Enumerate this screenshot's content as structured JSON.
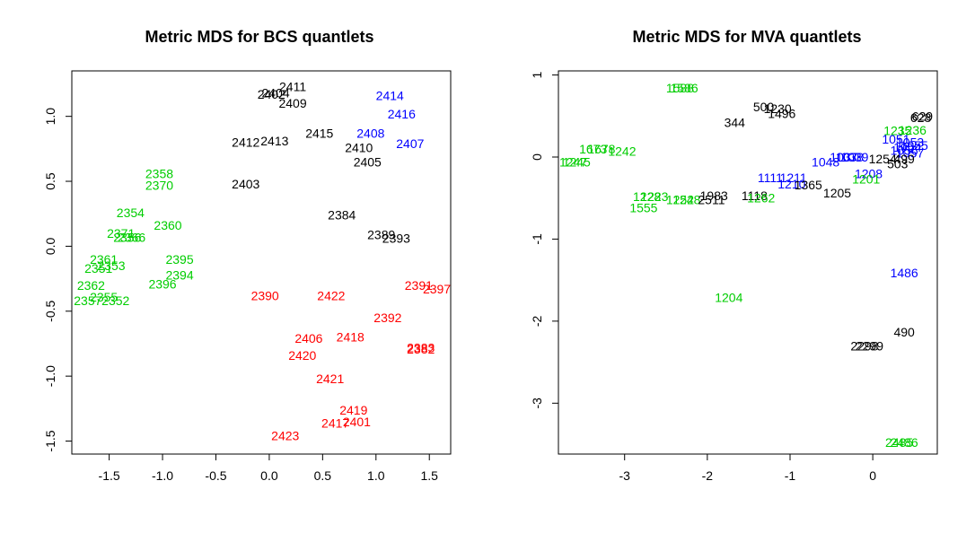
{
  "colors": {
    "black": "#000000",
    "blue": "#0000ff",
    "green": "#00cd00",
    "red": "#ff0000"
  },
  "chart_data": [
    {
      "type": "scatter",
      "title": "Metric MDS for BCS quantlets",
      "xlabel": "",
      "ylabel": "",
      "xlim": [
        -1.85,
        1.7
      ],
      "ylim": [
        -1.6,
        1.35
      ],
      "xticks": [
        -1.5,
        -1.0,
        -0.5,
        0.0,
        0.5,
        1.0,
        1.5
      ],
      "xtick_labels": [
        "-1.5",
        "-1.0",
        "-0.5",
        "0.0",
        "0.5",
        "1.0",
        "1.5"
      ],
      "yticks": [
        -1.5,
        -1.0,
        -0.5,
        0.0,
        0.5,
        1.0
      ],
      "ytick_labels": [
        "-1.5",
        "-1.0",
        "-0.5",
        "0.0",
        "0.5",
        "1.0"
      ],
      "grid": false,
      "points": [
        {
          "label": "2411",
          "x": 0.22,
          "y": 1.23,
          "color": "black"
        },
        {
          "label": "2404",
          "x": 0.06,
          "y": 1.18,
          "color": "black"
        },
        {
          "label": "2402",
          "x": 0.02,
          "y": 1.17,
          "color": "black"
        },
        {
          "label": "2409",
          "x": 0.22,
          "y": 1.1,
          "color": "black"
        },
        {
          "label": "2412",
          "x": -0.22,
          "y": 0.8,
          "color": "black"
        },
        {
          "label": "2413",
          "x": 0.05,
          "y": 0.81,
          "color": "black"
        },
        {
          "label": "2415",
          "x": 0.47,
          "y": 0.87,
          "color": "black"
        },
        {
          "label": "2410",
          "x": 0.84,
          "y": 0.76,
          "color": "black"
        },
        {
          "label": "2405",
          "x": 0.92,
          "y": 0.65,
          "color": "black"
        },
        {
          "label": "2403",
          "x": -0.22,
          "y": 0.48,
          "color": "black"
        },
        {
          "label": "2384",
          "x": 0.68,
          "y": 0.24,
          "color": "black"
        },
        {
          "label": "2389",
          "x": 1.05,
          "y": 0.09,
          "color": "black"
        },
        {
          "label": "2393",
          "x": 1.19,
          "y": 0.06,
          "color": "black"
        },
        {
          "label": "2414",
          "x": 1.13,
          "y": 1.16,
          "color": "blue"
        },
        {
          "label": "2416",
          "x": 1.24,
          "y": 1.02,
          "color": "blue"
        },
        {
          "label": "2408",
          "x": 0.95,
          "y": 0.87,
          "color": "blue"
        },
        {
          "label": "2407",
          "x": 1.32,
          "y": 0.79,
          "color": "blue"
        },
        {
          "label": "2358",
          "x": -1.03,
          "y": 0.56,
          "color": "green"
        },
        {
          "label": "2370",
          "x": -1.03,
          "y": 0.47,
          "color": "green"
        },
        {
          "label": "2354",
          "x": -1.3,
          "y": 0.26,
          "color": "green"
        },
        {
          "label": "2360",
          "x": -0.95,
          "y": 0.16,
          "color": "green"
        },
        {
          "label": "2371",
          "x": -1.39,
          "y": 0.1,
          "color": "green"
        },
        {
          "label": "2356",
          "x": -1.33,
          "y": 0.07,
          "color": "green"
        },
        {
          "label": "2366",
          "x": -1.29,
          "y": 0.07,
          "color": "green"
        },
        {
          "label": "2361",
          "x": -1.55,
          "y": -0.1,
          "color": "green"
        },
        {
          "label": "2353",
          "x": -1.48,
          "y": -0.15,
          "color": "green"
        },
        {
          "label": "2351",
          "x": -1.6,
          "y": -0.17,
          "color": "green"
        },
        {
          "label": "2395",
          "x": -0.84,
          "y": -0.1,
          "color": "green"
        },
        {
          "label": "2394",
          "x": -0.84,
          "y": -0.22,
          "color": "green"
        },
        {
          "label": "2396",
          "x": -1.0,
          "y": -0.29,
          "color": "green"
        },
        {
          "label": "2362",
          "x": -1.67,
          "y": -0.3,
          "color": "green"
        },
        {
          "label": "2355",
          "x": -1.55,
          "y": -0.39,
          "color": "green"
        },
        {
          "label": "2357",
          "x": -1.7,
          "y": -0.42,
          "color": "green"
        },
        {
          "label": "2352",
          "x": -1.44,
          "y": -0.42,
          "color": "green"
        },
        {
          "label": "2390",
          "x": -0.04,
          "y": -0.38,
          "color": "red"
        },
        {
          "label": "2422",
          "x": 0.58,
          "y": -0.38,
          "color": "red"
        },
        {
          "label": "2391",
          "x": 1.4,
          "y": -0.3,
          "color": "red"
        },
        {
          "label": "2397",
          "x": 1.57,
          "y": -0.33,
          "color": "red"
        },
        {
          "label": "2392",
          "x": 1.11,
          "y": -0.55,
          "color": "red"
        },
        {
          "label": "2406",
          "x": 0.37,
          "y": -0.71,
          "color": "red"
        },
        {
          "label": "2418",
          "x": 0.76,
          "y": -0.7,
          "color": "red"
        },
        {
          "label": "2420",
          "x": 0.31,
          "y": -0.84,
          "color": "red"
        },
        {
          "label": "2383",
          "x": 1.42,
          "y": -0.78,
          "color": "red"
        },
        {
          "label": "2382",
          "x": 1.42,
          "y": -0.79,
          "color": "red"
        },
        {
          "label": "2421",
          "x": 0.57,
          "y": -1.02,
          "color": "red"
        },
        {
          "label": "2419",
          "x": 0.79,
          "y": -1.26,
          "color": "red"
        },
        {
          "label": "2417",
          "x": 0.62,
          "y": -1.36,
          "color": "red"
        },
        {
          "label": "2401",
          "x": 0.82,
          "y": -1.35,
          "color": "red"
        },
        {
          "label": "2423",
          "x": 0.15,
          "y": -1.46,
          "color": "red"
        }
      ]
    },
    {
      "type": "scatter",
      "title": "Metric MDS for MVA quantlets",
      "xlabel": "",
      "ylabel": "",
      "xlim": [
        -3.8,
        0.78
      ],
      "ylim": [
        -3.62,
        1.05
      ],
      "xticks": [
        -3,
        -2,
        -1,
        0
      ],
      "xtick_labels": [
        "-3",
        "-2",
        "-1",
        "0"
      ],
      "yticks": [
        -3,
        -2,
        -1,
        0,
        1
      ],
      "ytick_labels": [
        "-3",
        "-2",
        "-1",
        "0",
        "1"
      ],
      "grid": false,
      "points": [
        {
          "label": "1588",
          "x": -2.33,
          "y": 0.84,
          "color": "green"
        },
        {
          "label": "1586",
          "x": -2.28,
          "y": 0.84,
          "color": "green"
        },
        {
          "label": "500",
          "x": -1.32,
          "y": 0.61,
          "color": "black"
        },
        {
          "label": "1230",
          "x": -1.15,
          "y": 0.59,
          "color": "black"
        },
        {
          "label": "1496",
          "x": -1.1,
          "y": 0.53,
          "color": "black"
        },
        {
          "label": "344",
          "x": -1.67,
          "y": 0.42,
          "color": "black"
        },
        {
          "label": "628",
          "x": 0.58,
          "y": 0.48,
          "color": "black"
        },
        {
          "label": "629",
          "x": 0.6,
          "y": 0.5,
          "color": "black"
        },
        {
          "label": "1235",
          "x": 0.3,
          "y": 0.32,
          "color": "green"
        },
        {
          "label": "1236",
          "x": 0.48,
          "y": 0.33,
          "color": "green"
        },
        {
          "label": "1051",
          "x": 0.28,
          "y": 0.22,
          "color": "blue"
        },
        {
          "label": "1053",
          "x": 0.45,
          "y": 0.18,
          "color": "blue"
        },
        {
          "label": "1054",
          "x": 0.42,
          "y": 0.12,
          "color": "blue"
        },
        {
          "label": "1055",
          "x": 0.5,
          "y": 0.14,
          "color": "blue"
        },
        {
          "label": "1056",
          "x": 0.38,
          "y": 0.08,
          "color": "blue"
        },
        {
          "label": "1057",
          "x": 0.45,
          "y": 0.05,
          "color": "blue"
        },
        {
          "label": "1048",
          "x": -0.57,
          "y": -0.06,
          "color": "blue"
        },
        {
          "label": "1037",
          "x": -0.35,
          "y": 0.0,
          "color": "blue"
        },
        {
          "label": "1038",
          "x": -0.28,
          "y": 0.0,
          "color": "blue"
        },
        {
          "label": "1039",
          "x": -0.22,
          "y": 0.0,
          "color": "blue"
        },
        {
          "label": "1254",
          "x": 0.12,
          "y": -0.02,
          "color": "black"
        },
        {
          "label": "499",
          "x": 0.38,
          "y": -0.02,
          "color": "black"
        },
        {
          "label": "503",
          "x": 0.3,
          "y": -0.08,
          "color": "black"
        },
        {
          "label": "1673",
          "x": -3.38,
          "y": 0.1,
          "color": "green"
        },
        {
          "label": "1678",
          "x": -3.28,
          "y": 0.1,
          "color": "green"
        },
        {
          "label": "1242",
          "x": -3.03,
          "y": 0.07,
          "color": "green"
        },
        {
          "label": "1247",
          "x": -3.62,
          "y": -0.06,
          "color": "green"
        },
        {
          "label": "1245",
          "x": -3.58,
          "y": -0.06,
          "color": "green"
        },
        {
          "label": "1208",
          "x": -0.05,
          "y": -0.2,
          "color": "blue"
        },
        {
          "label": "1111",
          "x": -1.24,
          "y": -0.25,
          "color": "blue"
        },
        {
          "label": "1211",
          "x": -0.96,
          "y": -0.25,
          "color": "blue"
        },
        {
          "label": "1210",
          "x": -0.98,
          "y": -0.33,
          "color": "blue"
        },
        {
          "label": "1201",
          "x": -0.08,
          "y": -0.27,
          "color": "green"
        },
        {
          "label": "1365",
          "x": -0.78,
          "y": -0.34,
          "color": "black"
        },
        {
          "label": "1205",
          "x": -0.43,
          "y": -0.44,
          "color": "black"
        },
        {
          "label": "1228",
          "x": -2.73,
          "y": -0.48,
          "color": "green"
        },
        {
          "label": "1223",
          "x": -2.64,
          "y": -0.48,
          "color": "green"
        },
        {
          "label": "1252",
          "x": -2.33,
          "y": -0.52,
          "color": "green"
        },
        {
          "label": "1248",
          "x": -2.25,
          "y": -0.52,
          "color": "green"
        },
        {
          "label": "1983",
          "x": -1.92,
          "y": -0.47,
          "color": "black"
        },
        {
          "label": "2511",
          "x": -1.95,
          "y": -0.52,
          "color": "black"
        },
        {
          "label": "1118",
          "x": -1.43,
          "y": -0.47,
          "color": "black"
        },
        {
          "label": "1262",
          "x": -1.35,
          "y": -0.5,
          "color": "green"
        },
        {
          "label": "1555",
          "x": -2.77,
          "y": -0.62,
          "color": "green"
        },
        {
          "label": "1486",
          "x": 0.38,
          "y": -1.41,
          "color": "blue"
        },
        {
          "label": "1204",
          "x": -1.74,
          "y": -1.71,
          "color": "green"
        },
        {
          "label": "490",
          "x": 0.38,
          "y": -2.13,
          "color": "black"
        },
        {
          "label": "2298",
          "x": -0.1,
          "y": -2.3,
          "color": "black"
        },
        {
          "label": "2299",
          "x": -0.04,
          "y": -2.3,
          "color": "black"
        },
        {
          "label": "2485",
          "x": 0.32,
          "y": -3.48,
          "color": "green"
        },
        {
          "label": "2486",
          "x": 0.38,
          "y": -3.48,
          "color": "green"
        }
      ]
    }
  ]
}
